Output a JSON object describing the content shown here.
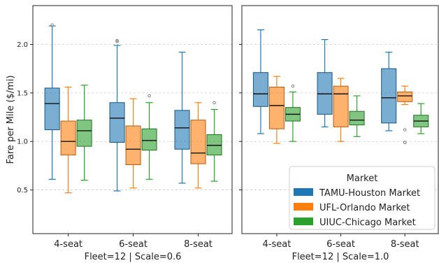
{
  "chart_data": {
    "type": "boxplot",
    "ylabel": "Fare per Mile ($/mi)",
    "ylim": [
      0.05,
      2.4
    ],
    "yticks": [
      0.5,
      1.0,
      1.5,
      2.0
    ],
    "ytick_labels": [
      "0.5",
      "1.0",
      "1.5",
      "2.0"
    ],
    "grid": true,
    "legend": {
      "title": "Market",
      "placement": "lower-right of right panel",
      "entries": [
        {
          "name": "TAMU-Houston Market",
          "color": "#1f77b4"
        },
        {
          "name": "UFL-Orlando Market",
          "color": "#ff7f0e"
        },
        {
          "name": "UIUC-Chicago Market",
          "color": "#2ca02c"
        }
      ]
    },
    "panels": [
      {
        "xlabel": "Fleet=12 | Scale=0.6",
        "categories": [
          "4-seat",
          "6-seat",
          "8-seat"
        ],
        "series": [
          {
            "name": "TAMU-Houston Market",
            "boxes": [
              {
                "whisker_low": 0.61,
                "q1": 1.12,
                "median": 1.39,
                "q3": 1.55,
                "whisker_high": 2.19,
                "outliers": [
                  2.2
                ]
              },
              {
                "whisker_low": 0.49,
                "q1": 0.99,
                "median": 1.24,
                "q3": 1.4,
                "whisker_high": 1.99,
                "outliers": [
                  2.03,
                  2.04
                ]
              },
              {
                "whisker_low": 0.57,
                "q1": 0.92,
                "median": 1.14,
                "q3": 1.32,
                "whisker_high": 1.92,
                "outliers": []
              }
            ]
          },
          {
            "name": "UFL-Orlando Market",
            "boxes": [
              {
                "whisker_low": 0.47,
                "q1": 0.86,
                "median": 1.0,
                "q3": 1.21,
                "whisker_high": 1.56,
                "outliers": []
              },
              {
                "whisker_low": 0.52,
                "q1": 0.76,
                "median": 0.92,
                "q3": 1.16,
                "whisker_high": 1.44,
                "outliers": []
              },
              {
                "whisker_low": 0.52,
                "q1": 0.77,
                "median": 0.88,
                "q3": 1.22,
                "whisker_high": 1.4,
                "outliers": []
              }
            ]
          },
          {
            "name": "UIUC-Chicago Market",
            "boxes": [
              {
                "whisker_low": 0.6,
                "q1": 0.95,
                "median": 1.11,
                "q3": 1.22,
                "whisker_high": 1.58,
                "outliers": []
              },
              {
                "whisker_low": 0.61,
                "q1": 0.91,
                "median": 1.01,
                "q3": 1.13,
                "whisker_high": 1.4,
                "outliers": [
                  1.47
                ]
              },
              {
                "whisker_low": 0.59,
                "q1": 0.86,
                "median": 0.96,
                "q3": 1.07,
                "whisker_high": 1.33,
                "outliers": [
                  1.4
                ]
              }
            ]
          }
        ]
      },
      {
        "xlabel": "Fleet=12 | Scale=1.0",
        "categories": [
          "4-seat",
          "6-seat",
          "8-seat"
        ],
        "series": [
          {
            "name": "TAMU-Houston Market",
            "boxes": [
              {
                "whisker_low": 1.08,
                "q1": 1.36,
                "median": 1.49,
                "q3": 1.71,
                "whisker_high": 2.15,
                "outliers": []
              },
              {
                "whisker_low": 1.15,
                "q1": 1.28,
                "median": 1.49,
                "q3": 1.71,
                "whisker_high": 2.05,
                "outliers": []
              },
              {
                "whisker_low": 1.11,
                "q1": 1.19,
                "median": 1.45,
                "q3": 1.75,
                "whisker_high": 1.92,
                "outliers": []
              }
            ]
          },
          {
            "name": "UFL-Orlando Market",
            "boxes": [
              {
                "whisker_low": 0.98,
                "q1": 1.13,
                "median": 1.37,
                "q3": 1.56,
                "whisker_high": 1.67,
                "outliers": []
              },
              {
                "whisker_low": 1.0,
                "q1": 1.15,
                "median": 1.49,
                "q3": 1.57,
                "whisker_high": 1.65,
                "outliers": []
              },
              {
                "whisker_low": 1.38,
                "q1": 1.41,
                "median": 1.47,
                "q3": 1.51,
                "whisker_high": 1.57,
                "outliers": [
                  1.12,
                  0.99,
                  0.99
                ]
              }
            ]
          },
          {
            "name": "UIUC-Chicago Market",
            "boxes": [
              {
                "whisker_low": 1.0,
                "q1": 1.21,
                "median": 1.28,
                "q3": 1.35,
                "whisker_high": 1.51,
                "outliers": [
                  1.57
                ]
              },
              {
                "whisker_low": 1.05,
                "q1": 1.17,
                "median": 1.22,
                "q3": 1.31,
                "whisker_high": 1.47,
                "outliers": []
              },
              {
                "whisker_low": 1.08,
                "q1": 1.15,
                "median": 1.21,
                "q3": 1.27,
                "whisker_high": 1.39,
                "outliers": []
              }
            ]
          }
        ]
      }
    ]
  }
}
